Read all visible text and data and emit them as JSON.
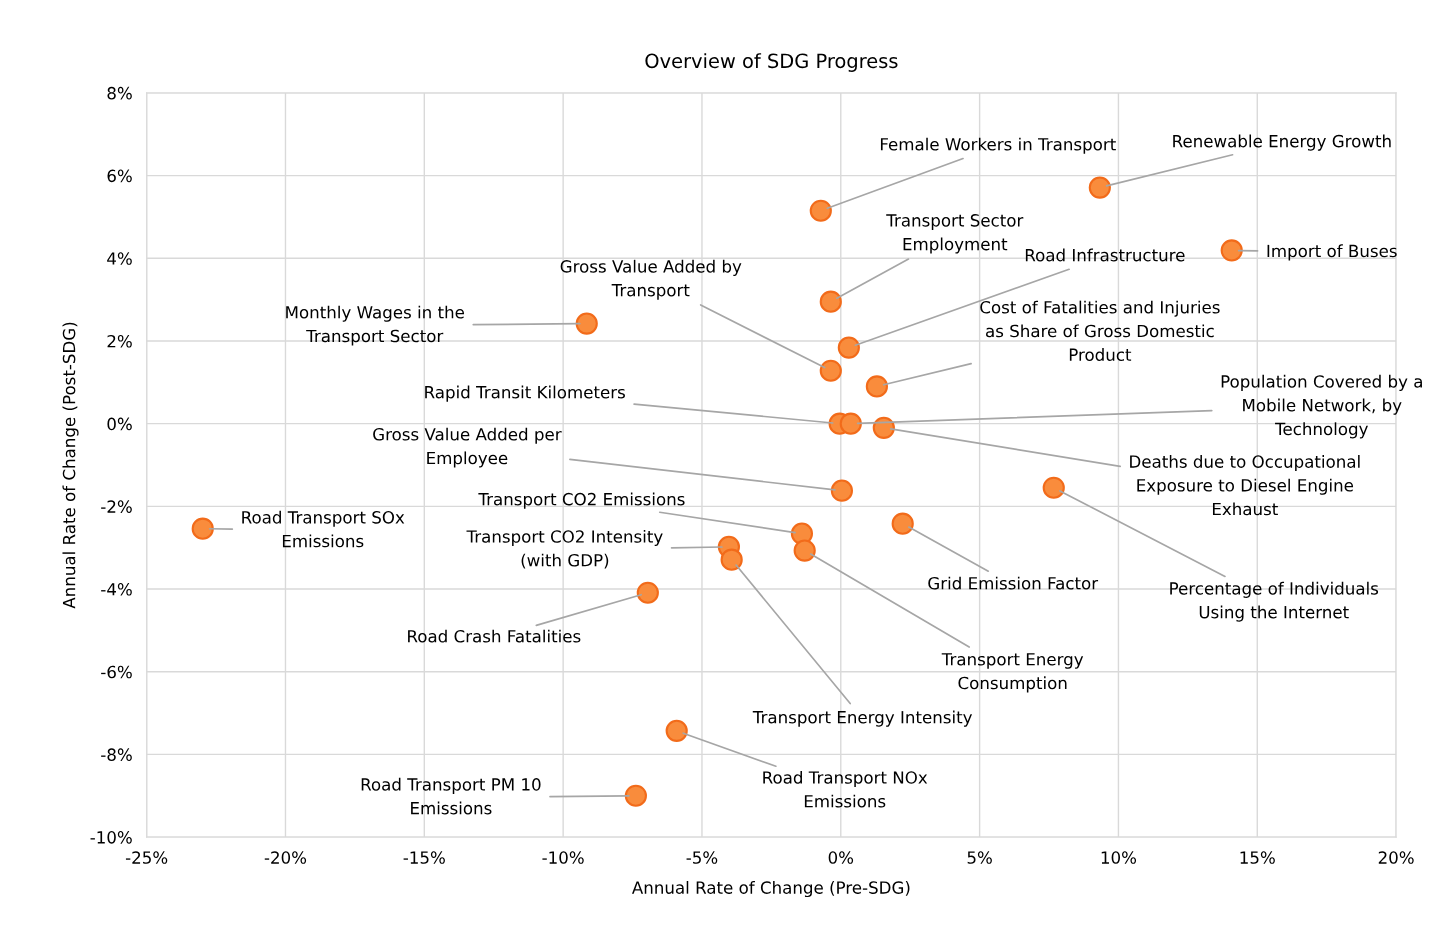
{
  "chart_data": {
    "type": "scatter",
    "title": "Overview of SDG Progress",
    "xlabel": "Annual Rate of Change (Pre-SDG)",
    "ylabel": "Annual Rate of Change (Post-SDG)",
    "x": [
      9.33,
      14.08,
      -0.72,
      -0.36,
      0.29,
      -0.36,
      -9.15,
      1.3,
      -0.04,
      0.36,
      1.55,
      0.04,
      7.67,
      2.23,
      -1.4,
      -1.3,
      -4.03,
      -3.93,
      -22.98,
      -6.95,
      -5.91,
      -7.38
    ],
    "values": [
      5.71,
      4.19,
      5.15,
      2.95,
      1.84,
      1.28,
      2.42,
      0.9,
      0.0,
      0.0,
      -0.1,
      -1.62,
      -1.55,
      -2.42,
      -2.66,
      -3.07,
      -2.98,
      -3.29,
      -2.54,
      -4.09,
      -7.43,
      -9.0
    ],
    "color": "#f98c3c",
    "marker": "circle",
    "grid": true,
    "legend": false,
    "xlim": [
      -25,
      20
    ],
    "ylim": [
      -10,
      8
    ],
    "xticks": [
      {
        "value": -25,
        "label": "-25%"
      },
      {
        "value": -20,
        "label": "-20%"
      },
      {
        "value": -15,
        "label": "-15%"
      },
      {
        "value": -10,
        "label": "-10%"
      },
      {
        "value": -5,
        "label": "-5%"
      },
      {
        "value": 0,
        "label": "0%"
      },
      {
        "value": 5,
        "label": "5%"
      },
      {
        "value": 10,
        "label": "10%"
      },
      {
        "value": 15,
        "label": "15%"
      },
      {
        "value": 20,
        "label": "20%"
      }
    ],
    "yticks": [
      {
        "value": -10,
        "label": "-10%"
      },
      {
        "value": -8,
        "label": "-8%"
      },
      {
        "value": -6,
        "label": "-6%"
      },
      {
        "value": -4,
        "label": "-4%"
      },
      {
        "value": -2,
        "label": "-2%"
      },
      {
        "value": 0,
        "label": "0%"
      },
      {
        "value": 2,
        "label": "2%"
      },
      {
        "value": 4,
        "label": "4%"
      },
      {
        "value": 6,
        "label": "6%"
      },
      {
        "value": 8,
        "label": "8%"
      }
    ],
    "annotations": [
      {
        "text": "Renewable Energy Growth",
        "x": 9.33,
        "y": 5.71
      },
      {
        "text": "Import of Buses",
        "x": 14.08,
        "y": 4.19
      },
      {
        "text": "Female Workers in Transport",
        "x": -0.72,
        "y": 5.15
      },
      {
        "text": "Transport Sector\nEmployment",
        "x": -0.36,
        "y": 2.95
      },
      {
        "text": "Road Infrastructure",
        "x": 0.29,
        "y": 1.84
      },
      {
        "text": "Gross Value Added by\nTransport",
        "x": -0.36,
        "y": 1.28
      },
      {
        "text": "Monthly Wages in the\nTransport Sector",
        "x": -9.15,
        "y": 2.42
      },
      {
        "text": "Cost of Fatalities and Injuries\nas Share of Gross Domestic\nProduct",
        "x": 1.3,
        "y": 0.9
      },
      {
        "text": "Rapid Transit Kilometers",
        "x": -0.04,
        "y": 0.0
      },
      {
        "text": "Population Covered by a\nMobile Network, by\nTechnology",
        "x": 0.36,
        "y": 0.0
      },
      {
        "text": "Deaths due to Occupational\nExposure to Diesel Engine\nExhaust",
        "x": 1.55,
        "y": -0.1
      },
      {
        "text": "Gross Value Added per\nEmployee",
        "x": 0.04,
        "y": -1.62
      },
      {
        "text": "Percentage of Individuals\nUsing the Internet",
        "x": 7.67,
        "y": -1.55
      },
      {
        "text": "Grid Emission Factor",
        "x": 2.23,
        "y": -2.42
      },
      {
        "text": "Transport CO2 Emissions",
        "x": -1.4,
        "y": -2.66
      },
      {
        "text": "Transport Energy\nConsumption",
        "x": -1.3,
        "y": -3.07
      },
      {
        "text": "Transport CO2 Intensity\n(with GDP)",
        "x": -4.03,
        "y": -2.98
      },
      {
        "text": "Transport Energy Intensity",
        "x": -3.93,
        "y": -3.29
      },
      {
        "text": "Road Transport SOx\nEmissions",
        "x": -22.98,
        "y": -2.54
      },
      {
        "text": "Road Crash Fatalities",
        "x": -6.95,
        "y": -4.09
      },
      {
        "text": "Road Transport NOx\nEmissions",
        "x": -5.91,
        "y": -7.43
      },
      {
        "text": "Road Transport PM 10\nEmissions",
        "x": -7.38,
        "y": -9.0
      }
    ]
  }
}
